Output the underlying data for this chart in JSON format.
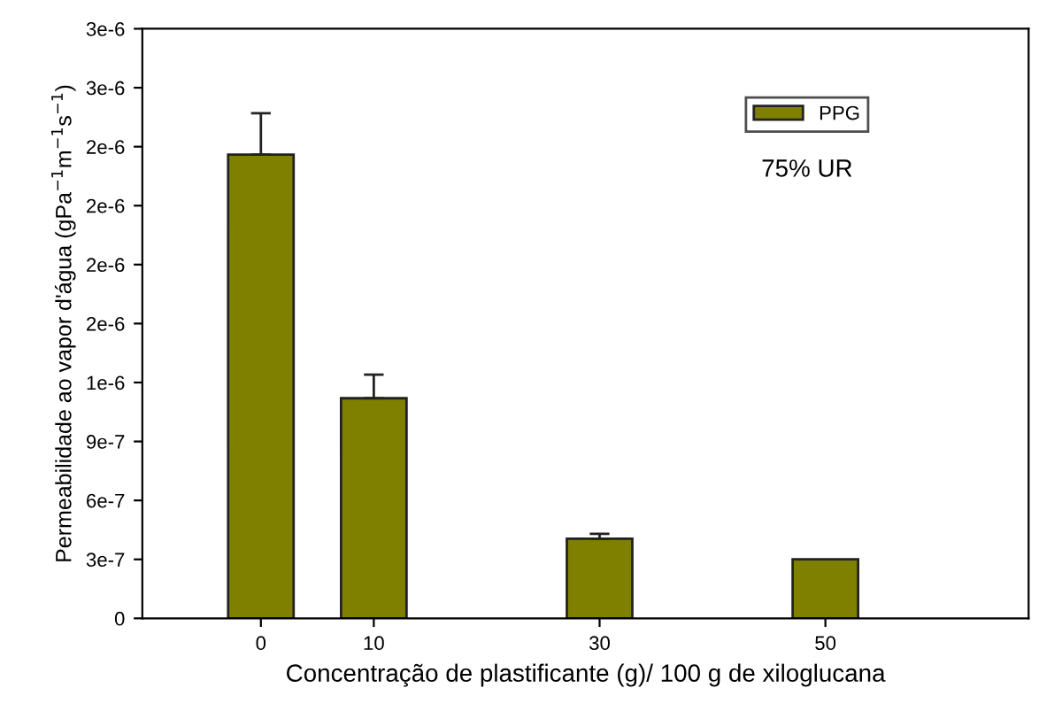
{
  "chart_data": {
    "type": "bar",
    "xlabel": "Concentração de plastificante (g)/ 100 g de xiloglucana",
    "ylabel": "Permeabilidade ao vapor d'água (gPa$^{−1}$m$^{−1}$s$^{−1}$)",
    "x": [
      0,
      10,
      30,
      50
    ],
    "series": [
      {
        "name": "PPG",
        "color": "#808000",
        "values": [
          2.36e-06,
          1.12e-06,
          4.05e-07,
          3e-07
        ],
        "errors": [
          2.1e-07,
          1.2e-07,
          2.5e-08,
          null
        ]
      }
    ],
    "xlim": [
      -10.5,
      68
    ],
    "xticks": [
      0,
      10,
      30,
      50
    ],
    "ylim": [
      0,
      3e-06
    ],
    "yticks": [
      0,
      {
        "value": 3e-07,
        "label": "3e-7"
      },
      {
        "value": 6e-07,
        "label": "6e-7"
      },
      {
        "value": 9e-07,
        "label": "9e-7"
      },
      {
        "value": 1.2e-06,
        "label": "1e-6"
      },
      {
        "value": 1.5e-06,
        "label": "2e-6"
      },
      {
        "value": 1.8e-06,
        "label": "2e-6"
      },
      {
        "value": 2.1e-06,
        "label": "2e-6"
      },
      {
        "value": 2.4e-06,
        "label": "2e-6"
      },
      {
        "value": 2.7e-06,
        "label": "3e-6"
      },
      {
        "value": 3e-06,
        "label": "3e-6"
      }
    ],
    "annotations": [
      "75% UR"
    ],
    "legend": "top right",
    "grid": false
  }
}
